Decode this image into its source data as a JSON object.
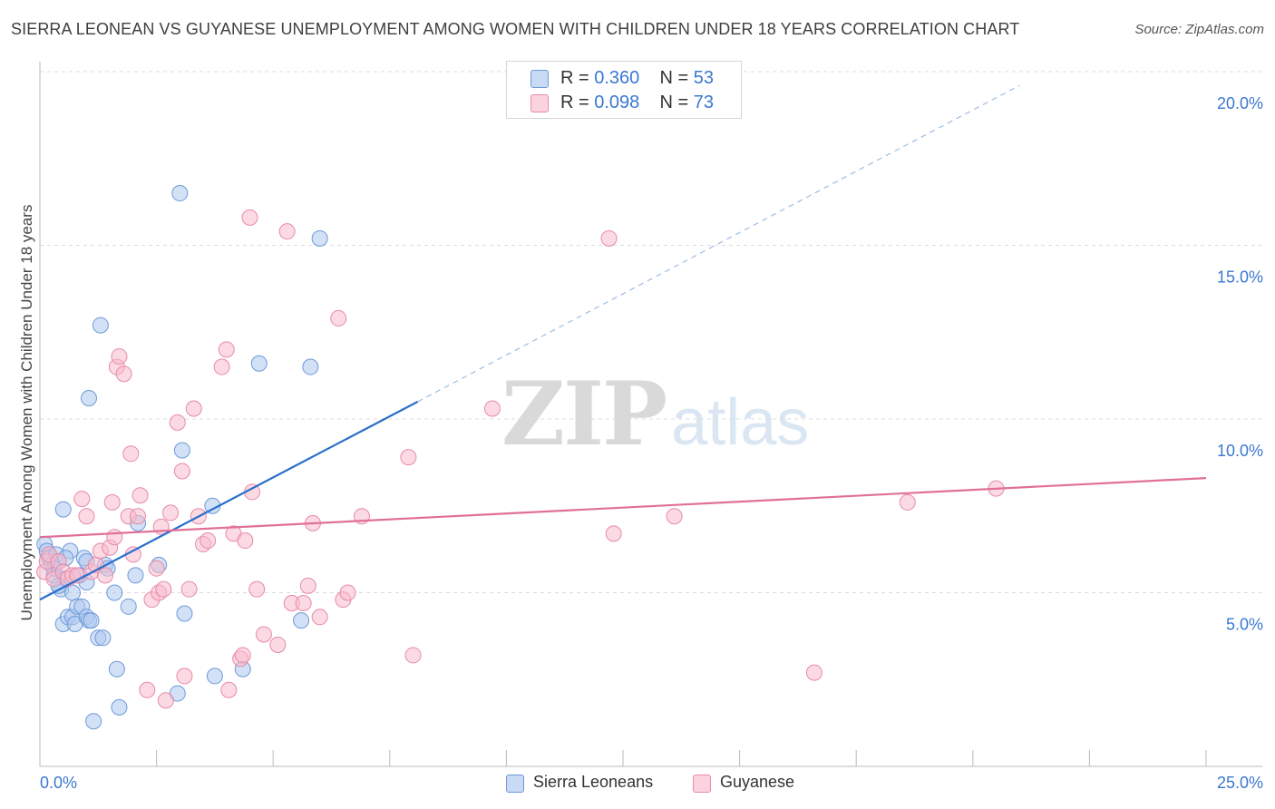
{
  "title": "SIERRA LEONEAN VS GUYANESE UNEMPLOYMENT AMONG WOMEN WITH CHILDREN UNDER 18 YEARS CORRELATION CHART",
  "source": "Source: ZipAtlas.com",
  "watermark": {
    "zip": "ZIP",
    "atlas": "atlas"
  },
  "legend": {
    "rows": [
      {
        "r_label": "R = ",
        "r_value": "0.360",
        "n_label": "N = ",
        "n_value": "53",
        "color": "#aec8ef"
      },
      {
        "r_label": "R = ",
        "r_value": "0.098",
        "n_label": "N = ",
        "n_value": "73",
        "color": "#f7bccd"
      }
    ]
  },
  "bottom_legend": [
    {
      "label": "Sierra Leoneans",
      "color": "#aec8ef"
    },
    {
      "label": "Guyanese",
      "color": "#f7bccd"
    }
  ],
  "colors": {
    "blue_fill": "#aec8ef",
    "blue_stroke": "#6d9ad8",
    "blue_line": "#2a6fcc",
    "pink_fill": "#f7bccd",
    "pink_stroke": "#e88aa8",
    "pink_line": "#e07098",
    "tick_label": "#3a78d0",
    "grid": "#dcdcdc"
  },
  "chart_data": {
    "type": "scatter",
    "title": "SIERRA LEONEAN VS GUYANESE UNEMPLOYMENT AMONG WOMEN WITH CHILDREN UNDER 18 YEARS CORRELATION CHART",
    "xlabel": "",
    "ylabel": "Unemployment Among Women with Children Under 18 years",
    "xlim": [
      0,
      25
    ],
    "ylim": [
      0,
      20
    ],
    "x_ticks": [
      0,
      25
    ],
    "x_tick_labels": [
      "0.0%",
      "25.0%"
    ],
    "y_ticks": [
      5,
      10,
      15,
      20
    ],
    "y_tick_labels": [
      "5.0%",
      "10.0%",
      "15.0%",
      "20.0%"
    ],
    "grid": true,
    "legend_position": "top-center",
    "series": [
      {
        "name": "Sierra Leoneans",
        "r": 0.36,
        "n": 53,
        "trend": {
          "x1": 0,
          "y1": 4.8,
          "x2": 8.1,
          "y2": 10.5,
          "dashed_to_x": 21.0,
          "dashed_to_y": 19.6
        },
        "points": [
          [
            0.1,
            6.4
          ],
          [
            0.15,
            6.2
          ],
          [
            0.2,
            6.0
          ],
          [
            0.25,
            5.8
          ],
          [
            0.3,
            5.5
          ],
          [
            0.35,
            6.1
          ],
          [
            0.4,
            5.9
          ],
          [
            0.45,
            5.1
          ],
          [
            0.5,
            4.1
          ],
          [
            0.5,
            7.4
          ],
          [
            0.55,
            5.4
          ],
          [
            0.6,
            4.3
          ],
          [
            0.65,
            6.2
          ],
          [
            0.7,
            5.0
          ],
          [
            0.7,
            4.3
          ],
          [
            0.75,
            4.1
          ],
          [
            0.8,
            4.6
          ],
          [
            0.85,
            5.5
          ],
          [
            0.9,
            4.6
          ],
          [
            0.95,
            6.0
          ],
          [
            1.0,
            4.3
          ],
          [
            1.0,
            5.9
          ],
          [
            1.05,
            4.2
          ],
          [
            1.0,
            5.3
          ],
          [
            1.05,
            10.6
          ],
          [
            1.1,
            4.2
          ],
          [
            1.15,
            1.3
          ],
          [
            1.25,
            3.7
          ],
          [
            1.3,
            12.7
          ],
          [
            1.35,
            3.7
          ],
          [
            1.4,
            5.8
          ],
          [
            1.45,
            5.7
          ],
          [
            1.6,
            5.0
          ],
          [
            1.65,
            2.8
          ],
          [
            1.7,
            1.7
          ],
          [
            1.9,
            4.6
          ],
          [
            2.05,
            5.5
          ],
          [
            2.1,
            7.0
          ],
          [
            2.55,
            5.8
          ],
          [
            2.95,
            2.1
          ],
          [
            3.0,
            16.5
          ],
          [
            3.05,
            9.1
          ],
          [
            3.1,
            4.4
          ],
          [
            3.7,
            7.5
          ],
          [
            3.75,
            2.6
          ],
          [
            4.35,
            2.8
          ],
          [
            4.7,
            11.6
          ],
          [
            5.6,
            4.2
          ],
          [
            5.8,
            11.5
          ],
          [
            6.0,
            15.2
          ],
          [
            0.3,
            5.7
          ],
          [
            0.55,
            6.0
          ],
          [
            0.4,
            5.2
          ]
        ]
      },
      {
        "name": "Guyanese",
        "r": 0.098,
        "n": 73,
        "trend": {
          "x1": 0,
          "y1": 6.6,
          "x2": 25,
          "y2": 8.3
        },
        "points": [
          [
            0.1,
            5.6
          ],
          [
            0.15,
            5.9
          ],
          [
            0.2,
            6.1
          ],
          [
            0.3,
            5.4
          ],
          [
            0.4,
            5.9
          ],
          [
            0.5,
            5.6
          ],
          [
            0.6,
            5.4
          ],
          [
            0.7,
            5.5
          ],
          [
            0.8,
            5.5
          ],
          [
            0.9,
            7.7
          ],
          [
            1.0,
            7.2
          ],
          [
            1.1,
            5.6
          ],
          [
            1.2,
            5.8
          ],
          [
            1.3,
            6.2
          ],
          [
            1.4,
            5.5
          ],
          [
            1.5,
            6.3
          ],
          [
            1.6,
            6.6
          ],
          [
            1.55,
            7.6
          ],
          [
            1.65,
            11.5
          ],
          [
            1.7,
            11.8
          ],
          [
            1.8,
            11.3
          ],
          [
            1.9,
            7.2
          ],
          [
            1.95,
            9.0
          ],
          [
            2.0,
            6.1
          ],
          [
            2.1,
            7.2
          ],
          [
            2.15,
            7.8
          ],
          [
            2.3,
            2.2
          ],
          [
            2.4,
            4.8
          ],
          [
            2.5,
            5.7
          ],
          [
            2.55,
            5.0
          ],
          [
            2.6,
            6.9
          ],
          [
            2.65,
            5.1
          ],
          [
            2.7,
            1.9
          ],
          [
            2.8,
            7.3
          ],
          [
            2.95,
            9.9
          ],
          [
            3.05,
            8.5
          ],
          [
            3.1,
            2.6
          ],
          [
            3.2,
            5.1
          ],
          [
            3.3,
            10.3
          ],
          [
            3.4,
            7.2
          ],
          [
            3.5,
            6.4
          ],
          [
            3.6,
            6.5
          ],
          [
            3.9,
            11.5
          ],
          [
            4.0,
            12.0
          ],
          [
            4.05,
            2.2
          ],
          [
            4.15,
            6.7
          ],
          [
            4.3,
            3.1
          ],
          [
            4.35,
            3.2
          ],
          [
            4.4,
            6.5
          ],
          [
            4.5,
            15.8
          ],
          [
            4.55,
            7.9
          ],
          [
            4.65,
            5.1
          ],
          [
            4.8,
            3.8
          ],
          [
            5.1,
            3.5
          ],
          [
            5.3,
            15.4
          ],
          [
            5.4,
            4.7
          ],
          [
            5.65,
            4.7
          ],
          [
            5.75,
            5.2
          ],
          [
            5.85,
            7.0
          ],
          [
            6.0,
            4.3
          ],
          [
            6.4,
            12.9
          ],
          [
            6.5,
            4.8
          ],
          [
            6.6,
            5.0
          ],
          [
            6.9,
            7.2
          ],
          [
            7.9,
            8.9
          ],
          [
            8.0,
            3.2
          ],
          [
            9.7,
            10.3
          ],
          [
            12.2,
            15.2
          ],
          [
            12.3,
            6.7
          ],
          [
            13.6,
            7.2
          ],
          [
            16.6,
            2.7
          ],
          [
            18.6,
            7.6
          ],
          [
            20.5,
            8.0
          ]
        ]
      }
    ]
  }
}
